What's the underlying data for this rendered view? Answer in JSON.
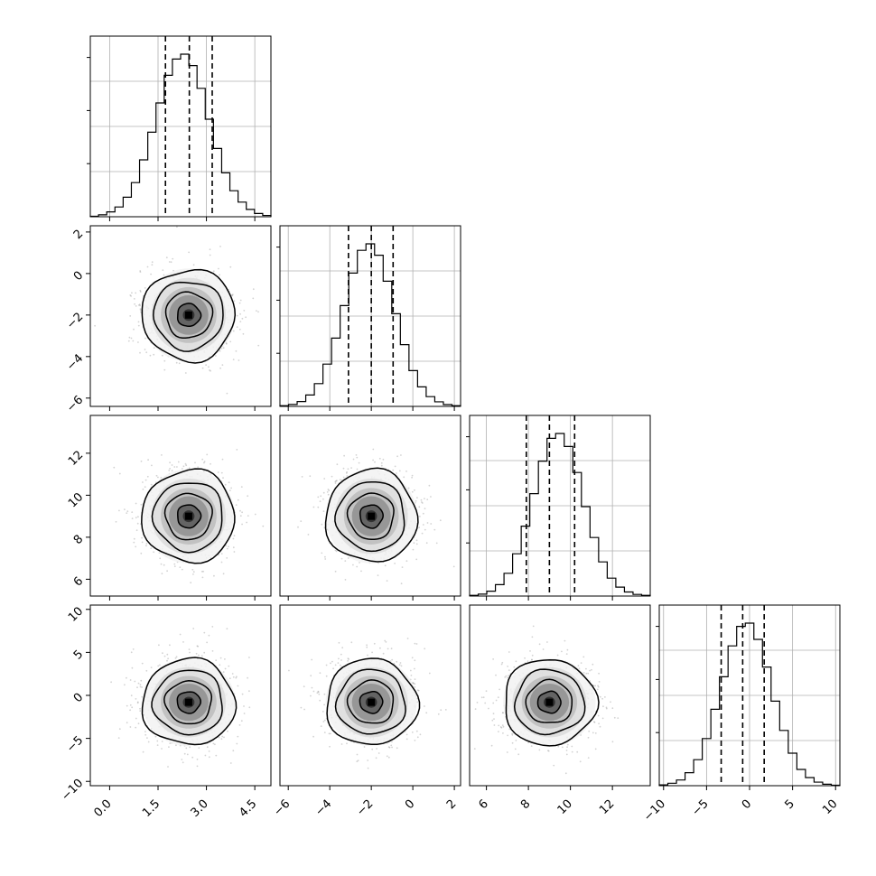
{
  "chart_data": {
    "type": "corner",
    "title": "",
    "params": [
      {
        "ylim": [
          0,
          1.0
        ],
        "quantiles": [
          1.73,
          2.47,
          3.18
        ],
        "xlim": [
          -0.6,
          5.0
        ],
        "xticks": [
          "0.0",
          "1.5",
          "3.0",
          "4.5"
        ],
        "xtick_values": [
          0.0,
          1.5,
          3.0,
          4.5
        ],
        "center": 2.45,
        "sigma": 0.72
      },
      {
        "ylim": [
          0,
          1.0
        ],
        "quantiles": [
          -3.1,
          -2.0,
          -0.95
        ],
        "xlim": [
          -6.4,
          2.3
        ],
        "xticks": [
          "−6",
          "−4",
          "−2",
          "0",
          "2"
        ],
        "xtick_values": [
          -6,
          -4,
          -2,
          0,
          2
        ],
        "center": -2.0,
        "sigma": 1.1
      },
      {
        "ylim": [
          0,
          1.0
        ],
        "quantiles": [
          7.9,
          9.0,
          10.2
        ],
        "xlim": [
          5.2,
          13.8
        ],
        "xticks": [
          "6",
          "8",
          "10",
          "12"
        ],
        "xtick_values": [
          6,
          8,
          10,
          12
        ],
        "center": 9.0,
        "sigma": 1.1
      },
      {
        "ylim": [
          0,
          1.0
        ],
        "quantiles": [
          -3.3,
          -0.8,
          1.7
        ],
        "xlim": [
          -10.5,
          10.5
        ],
        "xticks": [
          "−10",
          "−5",
          "0",
          "5",
          "10"
        ],
        "xtick_values": [
          -10,
          -5,
          0,
          5,
          10
        ],
        "center": -0.8,
        "sigma": 2.5
      }
    ],
    "y_axis_ticks": {
      "1": {
        "labels": [
          "2",
          "0",
          "−2",
          "−4",
          "−6"
        ],
        "values": [
          2,
          0,
          -2,
          -4,
          -6
        ]
      },
      "2": {
        "labels": [
          "12",
          "10",
          "8",
          "6"
        ],
        "values": [
          12,
          10,
          8,
          6
        ]
      },
      "3": {
        "labels": [
          "10",
          "5",
          "0",
          "−5",
          "−10"
        ],
        "values": [
          10,
          5,
          0,
          -5,
          -10
        ]
      }
    },
    "histograms": [
      [
        0.003,
        0.012,
        0.03,
        0.06,
        0.12,
        0.21,
        0.35,
        0.52,
        0.7,
        0.87,
        0.97,
        1.0,
        0.93,
        0.79,
        0.6,
        0.42,
        0.27,
        0.16,
        0.09,
        0.045,
        0.02,
        0.008
      ],
      [
        0.004,
        0.012,
        0.03,
        0.07,
        0.14,
        0.26,
        0.42,
        0.62,
        0.82,
        0.96,
        1.0,
        0.93,
        0.77,
        0.57,
        0.38,
        0.22,
        0.12,
        0.06,
        0.028,
        0.011,
        0.004
      ],
      [
        0.004,
        0.012,
        0.03,
        0.07,
        0.14,
        0.26,
        0.43,
        0.63,
        0.83,
        0.97,
        1.0,
        0.92,
        0.76,
        0.55,
        0.36,
        0.21,
        0.11,
        0.055,
        0.025,
        0.01,
        0.004
      ],
      [
        0.005,
        0.015,
        0.035,
        0.08,
        0.16,
        0.29,
        0.47,
        0.67,
        0.86,
        0.98,
        1.0,
        0.9,
        0.73,
        0.52,
        0.34,
        0.2,
        0.1,
        0.05,
        0.022,
        0.009,
        0.003
      ]
    ],
    "contour_levels_sigma": [
      0.5,
      1.0,
      1.5,
      2.0
    ],
    "scatter_color": "#808080",
    "line_color": "#000000",
    "grid": true
  }
}
